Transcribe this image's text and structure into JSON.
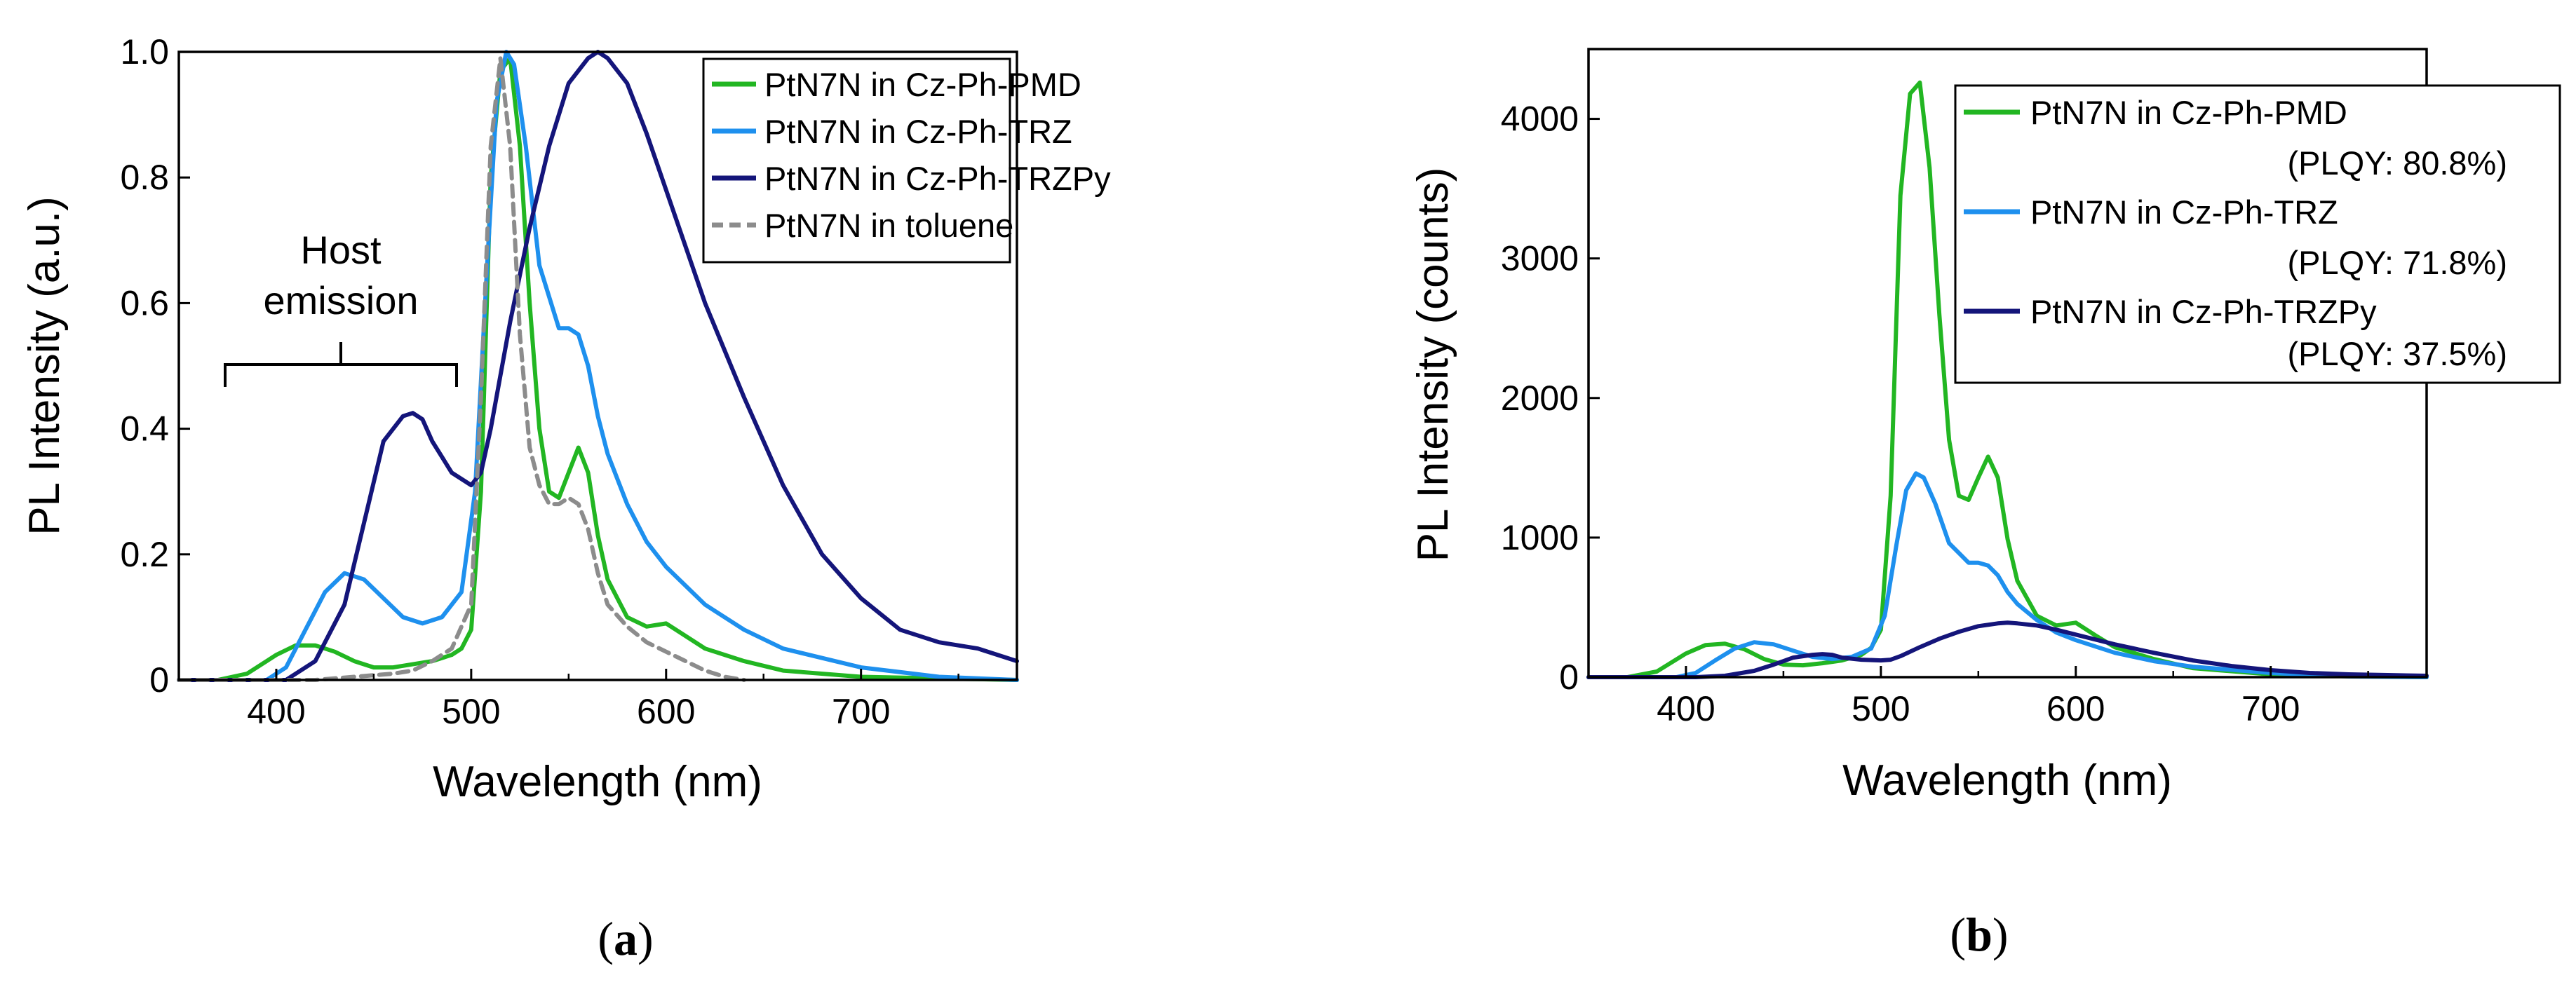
{
  "colors": {
    "pmd": "#22b622",
    "trz": "#1e90ee",
    "trzpy": "#14157a",
    "toluene": "#8c8c8c"
  },
  "chart_data": [
    {
      "type": "line",
      "panel": "a",
      "caption": "a",
      "xlabel": "Wavelength (nm)",
      "ylabel": "PL Intensity (a.u.)",
      "xlim": [
        350,
        780
      ],
      "ylim": [
        0,
        1.0
      ],
      "xticks": [
        "400",
        "500",
        "600",
        "700"
      ],
      "yticks": [
        "0",
        "0.2",
        "0.4",
        "0.6",
        "0.8",
        "1.0"
      ],
      "legend_position": "top-right",
      "annotation": {
        "line1": "Host",
        "line2": "emission",
        "range_nm": [
          380,
          495
        ]
      },
      "series": [
        {
          "key": "pmd",
          "name": "PtN7N in Cz-Ph-PMD",
          "style": "solid",
          "x": [
            350,
            370,
            385,
            400,
            410,
            420,
            430,
            440,
            450,
            460,
            470,
            480,
            490,
            495,
            500,
            505,
            510,
            515,
            520,
            525,
            530,
            535,
            540,
            545,
            550,
            555,
            560,
            565,
            570,
            580,
            590,
            600,
            610,
            620,
            640,
            660,
            700,
            780
          ],
          "y": [
            0,
            0,
            0.01,
            0.04,
            0.055,
            0.055,
            0.045,
            0.03,
            0.02,
            0.02,
            0.025,
            0.03,
            0.04,
            0.05,
            0.08,
            0.3,
            0.8,
            0.97,
            0.99,
            0.85,
            0.6,
            0.4,
            0.3,
            0.29,
            0.33,
            0.37,
            0.33,
            0.23,
            0.16,
            0.1,
            0.085,
            0.09,
            0.07,
            0.05,
            0.03,
            0.015,
            0.005,
            0
          ]
        },
        {
          "key": "trz",
          "name": "PtN7N in Cz-Ph-TRZ",
          "style": "solid",
          "x": [
            350,
            395,
            405,
            415,
            425,
            435,
            445,
            455,
            465,
            475,
            485,
            495,
            502,
            508,
            513,
            518,
            522,
            528,
            535,
            545,
            550,
            555,
            560,
            565,
            570,
            580,
            590,
            600,
            620,
            640,
            660,
            700,
            740,
            780
          ],
          "y": [
            0,
            0,
            0.02,
            0.08,
            0.14,
            0.17,
            0.16,
            0.13,
            0.1,
            0.09,
            0.1,
            0.14,
            0.3,
            0.65,
            0.92,
            1.0,
            0.98,
            0.85,
            0.66,
            0.56,
            0.56,
            0.55,
            0.5,
            0.42,
            0.36,
            0.28,
            0.22,
            0.18,
            0.12,
            0.08,
            0.05,
            0.02,
            0.005,
            0
          ]
        },
        {
          "key": "trzpy",
          "name": "PtN7N in Cz-Ph-TRZPy",
          "style": "solid",
          "x": [
            350,
            405,
            420,
            435,
            445,
            455,
            465,
            470,
            475,
            480,
            490,
            500,
            505,
            510,
            520,
            530,
            540,
            550,
            560,
            565,
            570,
            580,
            590,
            600,
            620,
            640,
            660,
            680,
            700,
            720,
            740,
            760,
            780
          ],
          "y": [
            0,
            0,
            0.03,
            0.12,
            0.25,
            0.38,
            0.42,
            0.425,
            0.415,
            0.38,
            0.33,
            0.31,
            0.33,
            0.4,
            0.57,
            0.72,
            0.85,
            0.95,
            0.99,
            1.0,
            0.99,
            0.95,
            0.87,
            0.78,
            0.6,
            0.45,
            0.31,
            0.2,
            0.13,
            0.08,
            0.06,
            0.05,
            0.03
          ]
        },
        {
          "key": "toluene",
          "name": "PtN7N in toluene",
          "style": "dashed",
          "x": [
            350,
            420,
            440,
            460,
            470,
            480,
            490,
            500,
            505,
            510,
            515,
            520,
            525,
            530,
            535,
            540,
            545,
            550,
            555,
            560,
            565,
            570,
            580,
            590,
            600,
            610,
            620,
            630,
            640
          ],
          "y": [
            0,
            0,
            0.005,
            0.01,
            0.015,
            0.03,
            0.05,
            0.12,
            0.45,
            0.85,
            0.99,
            0.85,
            0.55,
            0.37,
            0.31,
            0.28,
            0.28,
            0.29,
            0.28,
            0.24,
            0.17,
            0.12,
            0.085,
            0.06,
            0.045,
            0.03,
            0.015,
            0.005,
            0
          ]
        }
      ]
    },
    {
      "type": "line",
      "panel": "b",
      "caption": "b",
      "xlabel": "Wavelength (nm)",
      "ylabel": "PL Intensity (counts)",
      "xlim": [
        350,
        780
      ],
      "ylim": [
        0,
        4500
      ],
      "xticks": [
        "400",
        "500",
        "600",
        "700"
      ],
      "yticks": [
        "0",
        "1000",
        "2000",
        "3000",
        "4000"
      ],
      "legend_position": "top-right",
      "series": [
        {
          "key": "pmd",
          "name": "PtN7N in Cz-Ph-PMD",
          "plqy": "(PLQY: 80.8%)",
          "style": "solid",
          "x": [
            350,
            370,
            385,
            400,
            410,
            420,
            430,
            440,
            450,
            460,
            470,
            480,
            490,
            495,
            500,
            505,
            510,
            515,
            520,
            525,
            530,
            535,
            540,
            545,
            550,
            555,
            560,
            565,
            570,
            580,
            590,
            600,
            610,
            620,
            640,
            660,
            700,
            780
          ],
          "y": [
            0,
            0,
            40,
            170,
            230,
            240,
            200,
            130,
            90,
            85,
            100,
            120,
            160,
            210,
            340,
            1300,
            3450,
            4180,
            4260,
            3650,
            2600,
            1700,
            1300,
            1270,
            1430,
            1580,
            1430,
            990,
            690,
            440,
            370,
            390,
            300,
            215,
            130,
            65,
            20,
            0
          ]
        },
        {
          "key": "trz",
          "name": "PtN7N in Cz-Ph-TRZ",
          "plqy": "(PLQY: 71.8%)",
          "style": "solid",
          "x": [
            350,
            395,
            405,
            415,
            425,
            435,
            445,
            455,
            465,
            475,
            485,
            495,
            502,
            508,
            513,
            518,
            522,
            528,
            535,
            545,
            550,
            555,
            560,
            565,
            570,
            580,
            590,
            600,
            620,
            640,
            660,
            700,
            740,
            780
          ],
          "y": [
            0,
            0,
            30,
            120,
            205,
            250,
            235,
            190,
            145,
            130,
            145,
            205,
            440,
            950,
            1340,
            1460,
            1430,
            1240,
            960,
            820,
            820,
            800,
            730,
            610,
            525,
            410,
            320,
            265,
            175,
            115,
            75,
            30,
            5,
            0
          ]
        },
        {
          "key": "trzpy",
          "name": "PtN7N in Cz-Ph-TRZPy",
          "plqy": "(PLQY: 37.5%)",
          "style": "solid",
          "x": [
            350,
            405,
            420,
            435,
            445,
            455,
            465,
            470,
            475,
            480,
            490,
            500,
            505,
            510,
            520,
            530,
            540,
            550,
            560,
            565,
            570,
            580,
            590,
            600,
            620,
            640,
            660,
            680,
            700,
            720,
            740,
            760,
            780
          ],
          "y": [
            0,
            0,
            10,
            45,
            90,
            140,
            160,
            165,
            160,
            140,
            125,
            120,
            125,
            150,
            215,
            275,
            325,
            365,
            385,
            390,
            385,
            370,
            340,
            305,
            235,
            175,
            120,
            80,
            50,
            30,
            20,
            15,
            10
          ]
        }
      ]
    }
  ]
}
